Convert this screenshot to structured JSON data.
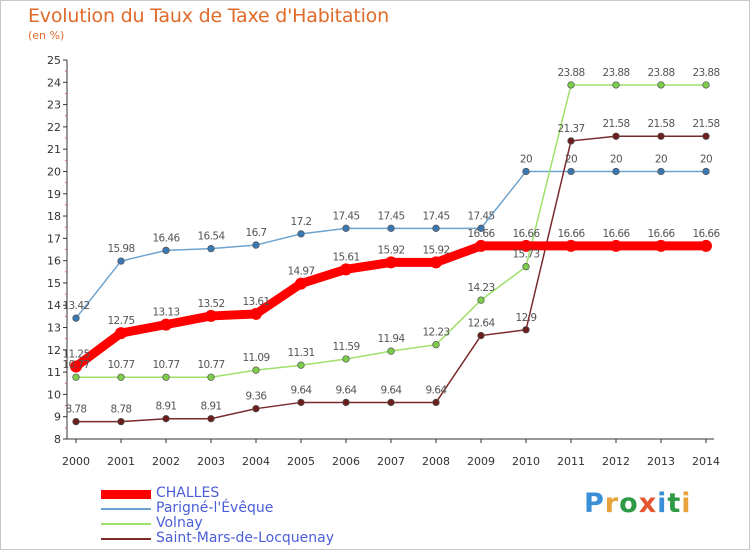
{
  "title": "Evolution du Taux de Taxe d'Habitation",
  "unit": "(en %)",
  "logo": {
    "text": "Proxiti",
    "colors": [
      "#3a8fd6",
      "#e8a33a",
      "#2f9a45",
      "#e4572e",
      "#3a8fd6",
      "#2f9a45",
      "#e8a33a"
    ]
  },
  "chart_data": {
    "type": "line",
    "title": "Evolution du Taux de Taxe d'Habitation",
    "ylabel": "(en %)",
    "xlabel": "",
    "x": [
      2000,
      2001,
      2002,
      2003,
      2004,
      2005,
      2006,
      2007,
      2008,
      2009,
      2010,
      2011,
      2012,
      2013,
      2014
    ],
    "ylim": [
      8,
      25
    ],
    "yticks": [
      8,
      9,
      10,
      11,
      12,
      13,
      14,
      15,
      16,
      17,
      18,
      19,
      20,
      21,
      22,
      23,
      24,
      25
    ],
    "grid": false,
    "legend_position": "bottom-left",
    "series": [
      {
        "name": "CHALLES",
        "color": "#ff0000",
        "marker_color": "#ff0000",
        "emphasis": true,
        "values": [
          11.25,
          12.75,
          13.13,
          13.52,
          13.61,
          14.97,
          15.61,
          15.92,
          15.92,
          16.66,
          16.66,
          16.66,
          16.66,
          16.66,
          16.66
        ],
        "labels": [
          "11.25",
          "12.75",
          "13.13",
          "13.52",
          "13.61",
          "14.97",
          "15.61",
          "15.92",
          "15.92",
          "16.66",
          "16.66",
          "16.66",
          "16.66",
          "16.66",
          "16.66"
        ]
      },
      {
        "name": "Parigné-l'Évêque",
        "color": "#6fa3cf",
        "marker_color": "#3a78b4",
        "values": [
          13.42,
          15.98,
          16.46,
          16.54,
          16.7,
          17.2,
          17.45,
          17.45,
          17.45,
          17.45,
          20,
          20,
          20,
          20,
          20
        ],
        "labels": [
          "13.42",
          "15.98",
          "16.46",
          "16.54",
          "16.7",
          "17.2",
          "17.45",
          "17.45",
          "17.45",
          "17.45",
          "20",
          "20",
          "20",
          "20",
          "20"
        ]
      },
      {
        "name": "Volnay",
        "color": "#9ee06a",
        "marker_color": "#7dcc4a",
        "values": [
          10.77,
          10.77,
          10.77,
          10.77,
          11.09,
          11.31,
          11.59,
          11.94,
          12.23,
          14.23,
          15.73,
          23.88,
          23.88,
          23.88,
          23.88
        ],
        "labels": [
          "10.77",
          "10.77",
          "10.77",
          "10.77",
          "11.09",
          "11.31",
          "11.59",
          "11.94",
          "12.23",
          "14.23",
          "15.73",
          "23.88",
          "23.88",
          "23.88",
          "23.88"
        ]
      },
      {
        "name": "Saint-Mars-de-Locquenay",
        "color": "#7a2a2a",
        "marker_color": "#6b1e1e",
        "values": [
          8.78,
          8.78,
          8.91,
          8.91,
          9.36,
          9.64,
          9.64,
          9.64,
          9.64,
          12.64,
          12.9,
          21.37,
          21.58,
          21.58,
          21.58
        ],
        "labels": [
          "8.78",
          "8.78",
          "8.91",
          "8.91",
          "9.36",
          "9.64",
          "9.64",
          "9.64",
          "9.64",
          "12.64",
          "12.9",
          "21.37",
          "21.58",
          "21.58",
          "21.58"
        ]
      }
    ]
  }
}
